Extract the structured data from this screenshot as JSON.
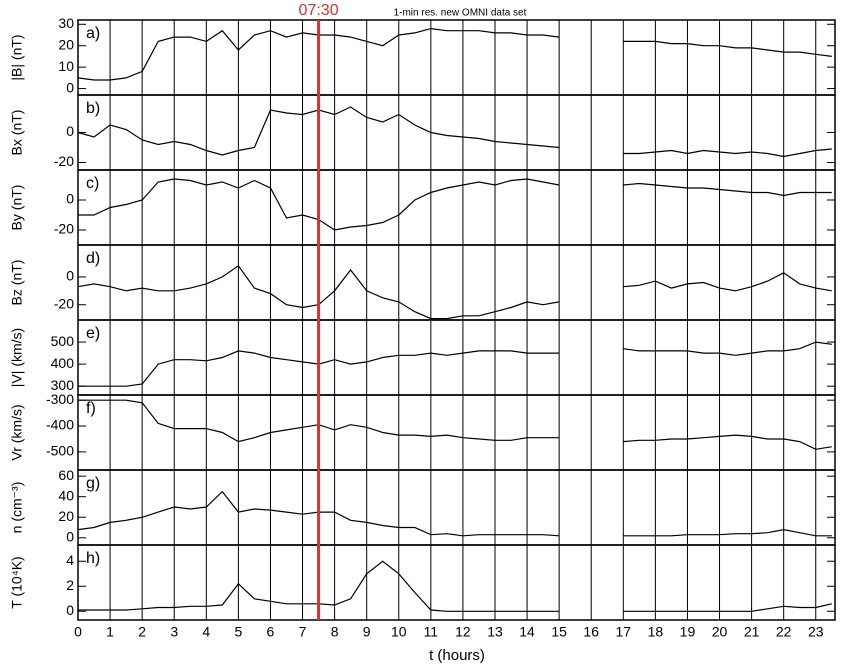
{
  "marker": {
    "label": "07:30",
    "x": 7.5
  },
  "note": "1-min res. new OMNI data set",
  "xlabel": "t (hours)",
  "xlim": [
    0,
    23.6
  ],
  "xticks": [
    0,
    1,
    2,
    3,
    4,
    5,
    6,
    7,
    8,
    9,
    10,
    11,
    12,
    13,
    14,
    15,
    16,
    17,
    18,
    19,
    20,
    21,
    22,
    23
  ],
  "x": [
    0,
    0.5,
    1,
    1.5,
    2,
    2.5,
    3,
    3.5,
    4,
    4.5,
    5,
    5.5,
    6,
    6.5,
    7,
    7.5,
    8,
    8.5,
    9,
    9.5,
    10,
    10.5,
    11,
    11.5,
    12,
    12.5,
    13,
    13.5,
    14,
    14.5,
    15,
    15.5,
    16,
    16.5,
    17,
    17.5,
    18,
    18.5,
    19,
    19.5,
    20,
    20.5,
    21,
    21.5,
    22,
    22.5,
    23,
    23.5
  ],
  "chart_data": [
    {
      "type": "line",
      "panel_label": "a)",
      "ylabel": "|B| (nT)",
      "color": "#000000",
      "ylim": [
        -3,
        32
      ],
      "yticks": [
        0,
        10,
        20,
        30
      ],
      "values": [
        5,
        4,
        4,
        5,
        8,
        22,
        24,
        24,
        22,
        27,
        18,
        25,
        27,
        24,
        26,
        25,
        25,
        24,
        22,
        20,
        25,
        26,
        28,
        27,
        27,
        27,
        26,
        26,
        25,
        25,
        24,
        null,
        null,
        null,
        22,
        22,
        22,
        21,
        21,
        20,
        20,
        19,
        19,
        18,
        17,
        17,
        16,
        15
      ]
    },
    {
      "type": "line",
      "panel_label": "b)",
      "ylabel": "Bx (nT)",
      "color": "#000000",
      "ylim": [
        -25,
        25
      ],
      "yticks": [
        -20,
        0
      ],
      "values": [
        0,
        -3,
        5,
        2,
        -5,
        -8,
        -6,
        -8,
        -12,
        -15,
        -12,
        -10,
        15,
        13,
        12,
        15,
        12,
        17,
        10,
        7,
        12,
        5,
        0,
        -2,
        -3,
        -4,
        -6,
        -7,
        -8,
        -9,
        -10,
        null,
        null,
        null,
        -14,
        -14,
        -13,
        -12,
        -14,
        -12,
        -13,
        -14,
        -13,
        -14,
        -16,
        -14,
        -12,
        -11
      ]
    },
    {
      "type": "line",
      "panel_label": "c)",
      "ylabel": "By (nT)",
      "color": "#000000",
      "ylim": [
        -30,
        20
      ],
      "yticks": [
        -20,
        0
      ],
      "values": [
        -10,
        -10,
        -5,
        -3,
        0,
        12,
        14,
        13,
        10,
        12,
        8,
        13,
        8,
        -12,
        -10,
        -13,
        -20,
        -18,
        -17,
        -15,
        -10,
        0,
        5,
        8,
        10,
        12,
        10,
        13,
        14,
        12,
        10,
        null,
        null,
        null,
        10,
        11,
        10,
        9,
        8,
        8,
        7,
        6,
        5,
        5,
        3,
        5,
        5,
        5
      ]
    },
    {
      "type": "line",
      "panel_label": "d)",
      "ylabel": "Bz (nT)",
      "color": "#000000",
      "ylim": [
        -31,
        23
      ],
      "yticks": [
        -20,
        0
      ],
      "values": [
        -7,
        -5,
        -7,
        -10,
        -8,
        -10,
        -10,
        -8,
        -5,
        0,
        8,
        -8,
        -12,
        -20,
        -22,
        -20,
        -10,
        5,
        -10,
        -15,
        -18,
        -25,
        -30,
        -30,
        -28,
        -28,
        -25,
        -22,
        -18,
        -20,
        -18,
        null,
        null,
        null,
        -7,
        -6,
        -3,
        -8,
        -5,
        -4,
        -8,
        -10,
        -7,
        -3,
        3,
        -5,
        -8,
        -10
      ]
    },
    {
      "type": "line",
      "panel_label": "e)",
      "ylabel": "|V| (km/s)",
      "color": "#000000",
      "ylim": [
        260,
        600
      ],
      "yticks": [
        300,
        400,
        500
      ],
      "values": [
        300,
        300,
        300,
        300,
        310,
        400,
        420,
        420,
        415,
        430,
        460,
        450,
        430,
        420,
        410,
        400,
        420,
        400,
        410,
        430,
        440,
        440,
        450,
        440,
        450,
        460,
        460,
        460,
        450,
        450,
        450,
        null,
        null,
        null,
        470,
        460,
        460,
        460,
        460,
        450,
        450,
        440,
        450,
        460,
        460,
        470,
        500,
        490
      ]
    },
    {
      "type": "line",
      "panel_label": "f)",
      "ylabel": "Vr (km/s)",
      "color": "#000000",
      "ylim": [
        -570,
        -280
      ],
      "yticks": [
        -500,
        -400,
        -300
      ],
      "values": [
        -300,
        -300,
        -300,
        -300,
        -310,
        -390,
        -410,
        -410,
        -410,
        -425,
        -460,
        -445,
        -425,
        -415,
        -405,
        -395,
        -415,
        -395,
        -405,
        -425,
        -435,
        -435,
        -440,
        -435,
        -445,
        -450,
        -455,
        -455,
        -445,
        -445,
        -445,
        null,
        null,
        null,
        -460,
        -455,
        -455,
        -450,
        -450,
        -445,
        -440,
        -435,
        -440,
        -450,
        -450,
        -460,
        -490,
        -480
      ]
    },
    {
      "type": "line",
      "panel_label": "g)",
      "ylabel": "n (cm⁻³)",
      "color": "#000000",
      "ylim": [
        -7,
        66
      ],
      "yticks": [
        0,
        20,
        40,
        60
      ],
      "values": [
        8,
        10,
        15,
        17,
        20,
        25,
        30,
        28,
        30,
        45,
        25,
        28,
        27,
        25,
        23,
        25,
        25,
        17,
        15,
        12,
        10,
        10,
        3,
        4,
        2,
        3,
        3,
        3,
        3,
        3,
        2,
        null,
        null,
        null,
        2,
        2,
        2,
        2,
        3,
        3,
        3,
        4,
        4,
        5,
        8,
        5,
        2,
        2
      ]
    },
    {
      "type": "line",
      "panel_label": "h)",
      "ylabel": "T (10⁴K)",
      "color": "#000000",
      "ylim": [
        -0.7,
        5.3
      ],
      "yticks": [
        0,
        2,
        4
      ],
      "values": [
        0.1,
        0.1,
        0.1,
        0.1,
        0.2,
        0.3,
        0.3,
        0.4,
        0.4,
        0.5,
        2.2,
        1,
        0.8,
        0.6,
        0.6,
        0.6,
        0.5,
        1,
        3,
        4,
        3,
        1.5,
        0.1,
        0,
        0,
        0,
        0,
        0,
        0,
        0,
        0,
        null,
        null,
        null,
        0,
        0,
        0,
        0,
        0,
        0,
        0,
        0,
        0,
        0.2,
        0.4,
        0.3,
        0.3,
        0.6
      ]
    }
  ]
}
